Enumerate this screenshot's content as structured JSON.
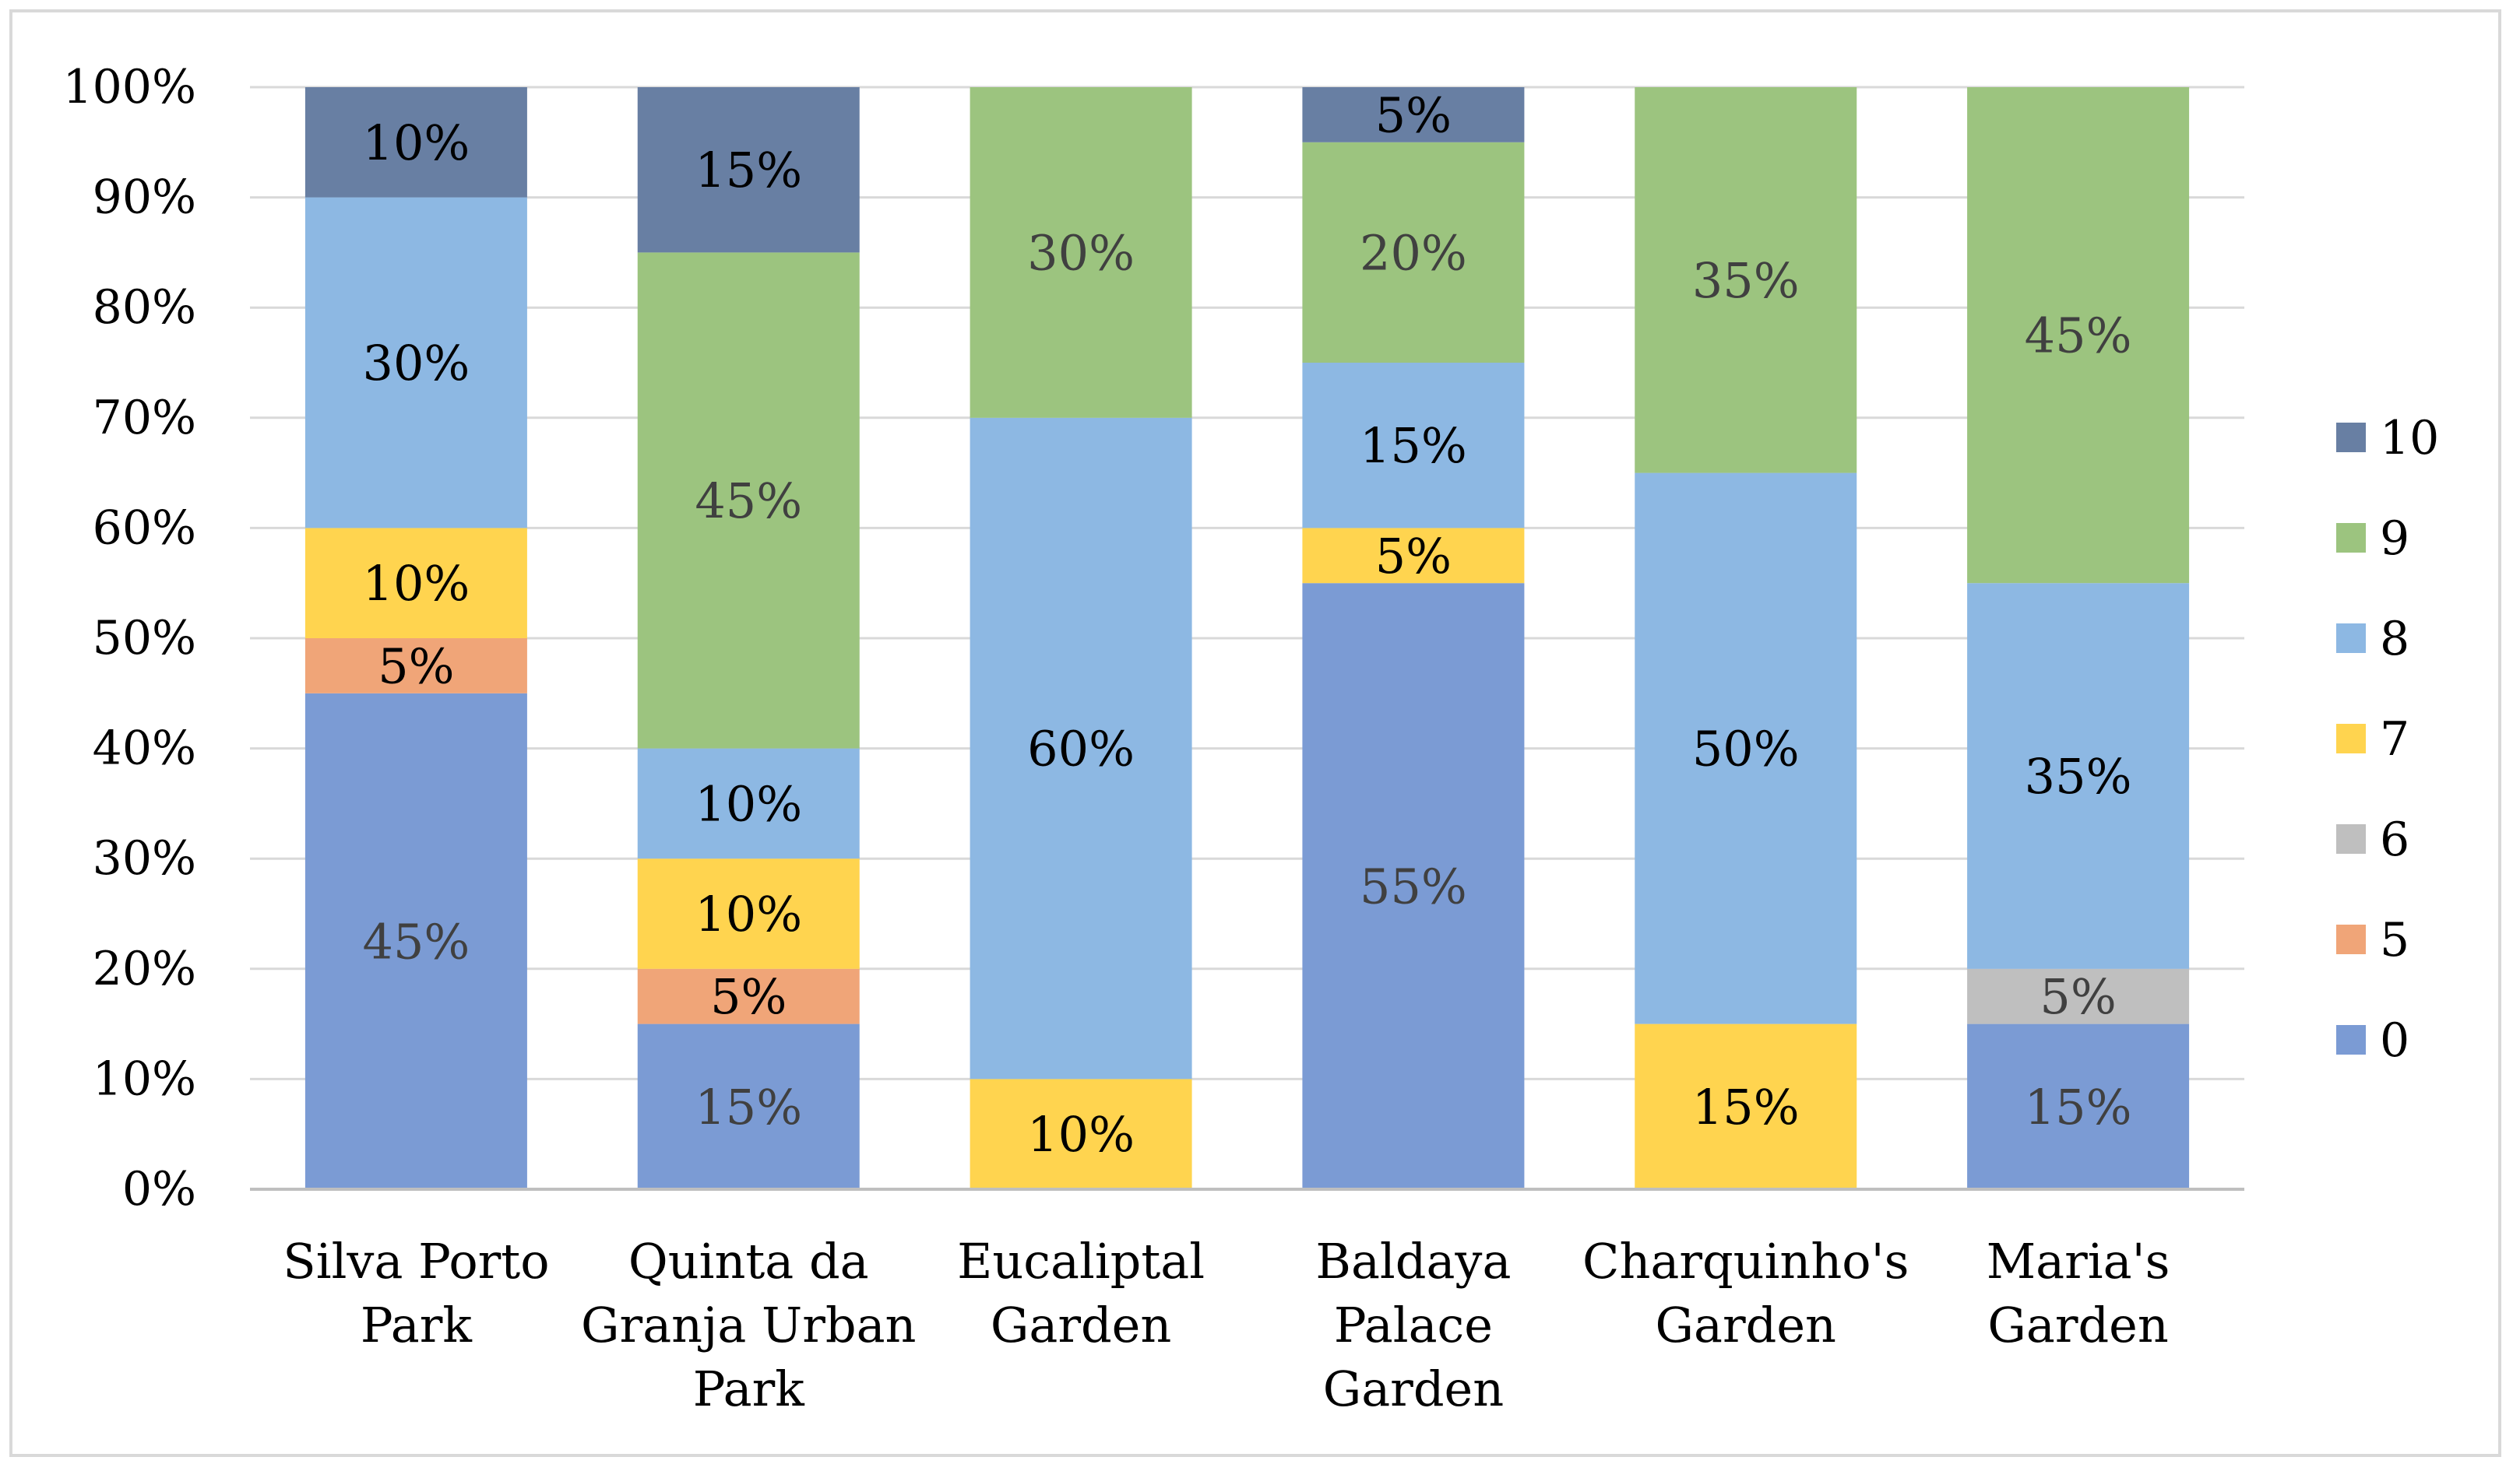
{
  "chart_data": {
    "type": "bar",
    "stacked": true,
    "percent_stacked": true,
    "title": "",
    "xlabel": "",
    "ylabel": "",
    "ylim": [
      0,
      100
    ],
    "y_ticks": [
      "0%",
      "10%",
      "20%",
      "30%",
      "40%",
      "50%",
      "60%",
      "70%",
      "80%",
      "90%",
      "100%"
    ],
    "grid": true,
    "legend_position": "right",
    "categories": [
      [
        "Silva Porto",
        "Park"
      ],
      [
        "Quinta da",
        "Granja Urban",
        "Park"
      ],
      [
        "Eucaliptal",
        "Garden"
      ],
      [
        "Baldaya",
        "Palace",
        "Garden"
      ],
      [
        "Charquinho's",
        "Garden"
      ],
      [
        "Maria's",
        "Garden"
      ]
    ],
    "series": [
      {
        "name": "0",
        "color": "#7b9bd4",
        "label_color": "#404040",
        "values": [
          45,
          15,
          0,
          55,
          0,
          15
        ]
      },
      {
        "name": "5",
        "color": "#f0a578",
        "label_color": "#000000",
        "values": [
          5,
          5,
          0,
          0,
          0,
          0
        ]
      },
      {
        "name": "6",
        "color": "#bfbfbf",
        "label_color": "#404040",
        "values": [
          0,
          0,
          0,
          0,
          0,
          5
        ]
      },
      {
        "name": "7",
        "color": "#ffd44f",
        "label_color": "#000000",
        "values": [
          10,
          10,
          10,
          5,
          15,
          0
        ]
      },
      {
        "name": "8",
        "color": "#8db8e3",
        "label_color": "#000000",
        "values": [
          30,
          10,
          60,
          15,
          50,
          35
        ]
      },
      {
        "name": "9",
        "color": "#9cc47f",
        "label_color": "#404040",
        "values": [
          0,
          45,
          30,
          20,
          35,
          45
        ]
      },
      {
        "name": "10",
        "color": "#687fa3",
        "label_color": "#000000",
        "values": [
          10,
          15,
          0,
          5,
          0,
          0
        ]
      }
    ],
    "legend_order": [
      "10",
      "9",
      "8",
      "7",
      "6",
      "5",
      "0"
    ]
  }
}
